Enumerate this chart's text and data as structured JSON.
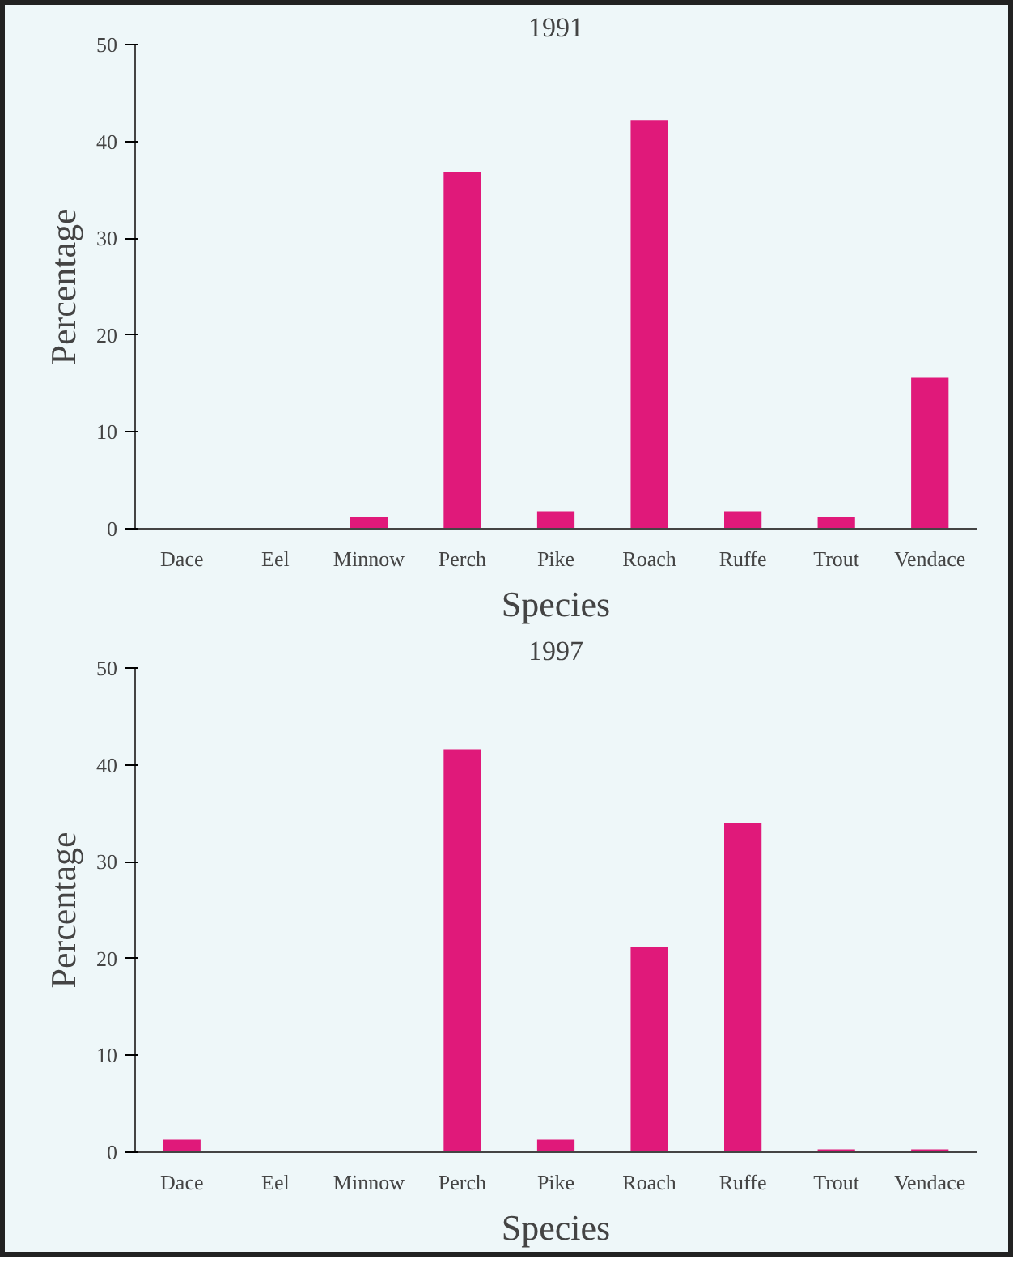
{
  "chart_data": [
    {
      "type": "bar",
      "title": "1991",
      "xlabel": "Species",
      "ylabel": "Percentage",
      "categories": [
        "Dace",
        "Eel",
        "Minnow",
        "Perch",
        "Pike",
        "Roach",
        "Ruffe",
        "Trout",
        "Vendace"
      ],
      "values": [
        0,
        0,
        1.2,
        36.8,
        1.8,
        42.2,
        1.8,
        1.2,
        15.6
      ],
      "color": "#e0197a",
      "ylim": [
        0,
        50
      ],
      "yticks": [
        0,
        10,
        20,
        30,
        40,
        50
      ],
      "grid": false
    },
    {
      "type": "bar",
      "title": "1997",
      "xlabel": "Species",
      "ylabel": "Percentage",
      "categories": [
        "Dace",
        "Eel",
        "Minnow",
        "Perch",
        "Pike",
        "Roach",
        "Ruffe",
        "Trout",
        "Vendace"
      ],
      "values": [
        1.3,
        0,
        0,
        41.6,
        1.3,
        21.2,
        34,
        0.3,
        0.3
      ],
      "color": "#e0197a",
      "ylim": [
        0,
        50
      ],
      "yticks": [
        0,
        10,
        20,
        30,
        40,
        50
      ],
      "grid": false
    }
  ]
}
